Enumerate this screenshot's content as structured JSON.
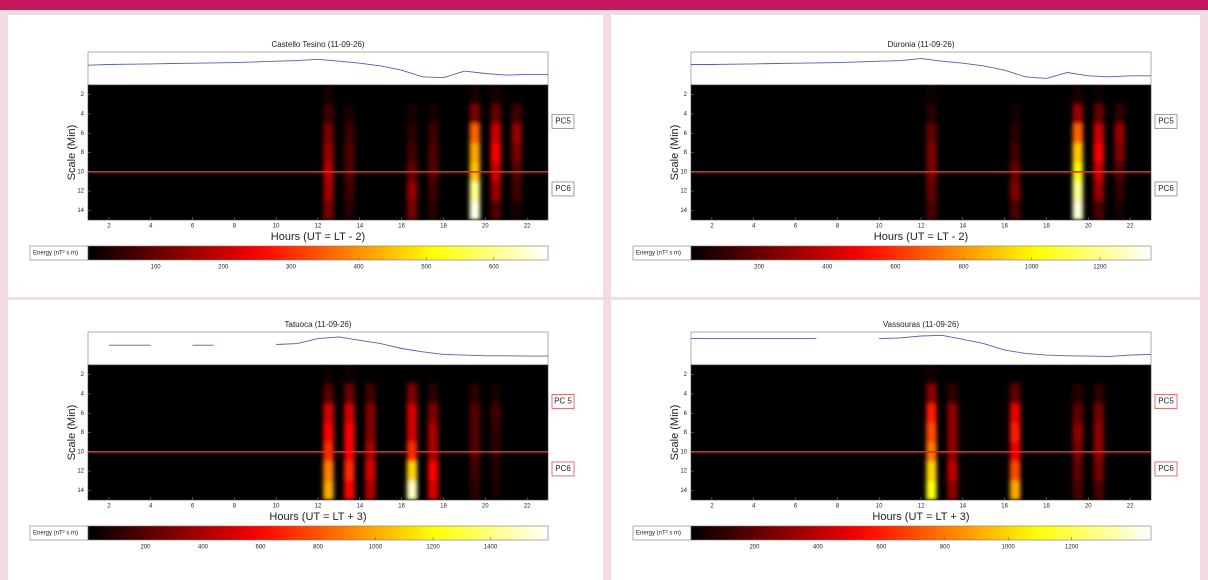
{
  "chart_data": [
    {
      "type": "heatmap",
      "title": "Castello Tesino (11-09-26)",
      "x_label": "Hours (UT = LT - 2)",
      "y_label": "Scale (Min)",
      "x": [
        1.5,
        2.5,
        3.5,
        4.5,
        5.5,
        6.5,
        7.5,
        8.5,
        9.5,
        10.5,
        11.5,
        12.5,
        13.5,
        14.5,
        15.5,
        16.5,
        17.5,
        18.5,
        19.5,
        20.5,
        21.5,
        22.5
      ],
      "y": [
        2,
        4,
        6,
        8,
        10,
        12,
        14
      ],
      "z": [
        [
          0,
          0,
          0,
          0,
          0,
          0,
          0,
          0,
          0,
          0,
          0,
          20,
          0,
          0,
          0,
          0,
          0,
          0,
          20,
          20,
          0,
          0
        ],
        [
          0,
          0,
          0,
          0,
          0,
          0,
          0,
          0,
          0,
          0,
          0,
          60,
          30,
          0,
          0,
          20,
          20,
          0,
          120,
          100,
          60,
          0
        ],
        [
          0,
          0,
          0,
          0,
          0,
          0,
          0,
          0,
          0,
          0,
          0,
          120,
          60,
          0,
          0,
          40,
          60,
          0,
          350,
          200,
          150,
          0
        ],
        [
          0,
          0,
          0,
          0,
          0,
          0,
          0,
          0,
          0,
          0,
          0,
          150,
          80,
          0,
          0,
          60,
          80,
          0,
          420,
          250,
          120,
          0
        ],
        [
          0,
          0,
          0,
          0,
          0,
          0,
          0,
          0,
          0,
          0,
          0,
          180,
          80,
          0,
          0,
          100,
          80,
          0,
          450,
          200,
          80,
          0
        ],
        [
          0,
          0,
          0,
          0,
          0,
          0,
          0,
          0,
          0,
          0,
          0,
          160,
          60,
          0,
          0,
          150,
          60,
          0,
          600,
          150,
          60,
          0
        ],
        [
          0,
          0,
          0,
          0,
          0,
          0,
          0,
          0,
          0,
          0,
          0,
          120,
          40,
          0,
          0,
          120,
          40,
          0,
          660,
          80,
          30,
          0
        ]
      ],
      "xlim": [
        1,
        23
      ],
      "xticks": [
        2,
        4,
        6,
        8,
        10,
        12,
        14,
        16,
        18,
        20,
        22
      ],
      "ylim": [
        1,
        15
      ],
      "yticks": [
        2,
        4,
        6,
        8,
        10,
        12,
        14
      ],
      "trace_x": [
        1,
        2,
        3,
        4,
        5,
        6,
        7,
        8,
        9,
        10,
        11,
        12,
        13,
        14,
        15,
        16,
        17,
        18,
        19,
        20,
        21,
        22,
        23
      ],
      "trace": [
        60,
        62,
        63,
        64,
        65,
        66,
        67,
        68,
        70,
        72,
        74,
        78,
        72,
        66,
        58,
        45,
        25,
        22,
        42,
        35,
        30,
        32,
        32
      ],
      "trace_ylim": [
        0,
        100
      ],
      "boundary": 10,
      "band_labels": [
        "PC5",
        "PC6"
      ],
      "colorbar_label": "Energy (nT² s m)",
      "clim": [
        0,
        680
      ],
      "cticks": [
        100,
        200,
        300,
        400,
        500,
        600
      ]
    },
    {
      "type": "heatmap",
      "title": "Duronia (11-09-26)",
      "x_label": "Hours (UT = LT - 2)",
      "y_label": "Scale (Min)",
      "x": [
        1.5,
        2.5,
        3.5,
        4.5,
        5.5,
        6.5,
        7.5,
        8.5,
        9.5,
        10.5,
        11.5,
        12.5,
        13.5,
        14.5,
        15.5,
        16.5,
        17.5,
        18.5,
        19.5,
        20.5,
        21.5,
        22.5
      ],
      "y": [
        2,
        4,
        6,
        8,
        10,
        12,
        14
      ],
      "z": [
        [
          0,
          0,
          0,
          0,
          0,
          0,
          0,
          0,
          0,
          0,
          0,
          20,
          0,
          0,
          0,
          0,
          0,
          0,
          40,
          20,
          0,
          0
        ],
        [
          0,
          0,
          0,
          0,
          0,
          0,
          0,
          0,
          0,
          0,
          0,
          80,
          0,
          0,
          0,
          40,
          0,
          0,
          300,
          200,
          100,
          0
        ],
        [
          0,
          0,
          0,
          0,
          0,
          0,
          0,
          0,
          0,
          0,
          0,
          200,
          0,
          0,
          0,
          80,
          0,
          0,
          700,
          400,
          300,
          0
        ],
        [
          0,
          0,
          0,
          0,
          0,
          0,
          0,
          0,
          0,
          0,
          0,
          250,
          0,
          0,
          0,
          120,
          0,
          0,
          900,
          500,
          250,
          0
        ],
        [
          0,
          0,
          0,
          0,
          0,
          0,
          0,
          0,
          0,
          0,
          0,
          250,
          0,
          0,
          0,
          200,
          0,
          0,
          1000,
          400,
          150,
          0
        ],
        [
          0,
          0,
          0,
          0,
          0,
          0,
          0,
          0,
          0,
          0,
          0,
          200,
          0,
          0,
          0,
          250,
          0,
          0,
          1200,
          300,
          100,
          0
        ],
        [
          0,
          0,
          0,
          0,
          0,
          0,
          0,
          0,
          0,
          0,
          0,
          150,
          0,
          0,
          0,
          150,
          0,
          0,
          1300,
          150,
          50,
          0
        ]
      ],
      "xlim": [
        1,
        23
      ],
      "xticks": [
        2,
        4,
        6,
        8,
        10,
        12,
        14,
        16,
        18,
        20,
        22
      ],
      "ylim": [
        1,
        15
      ],
      "yticks": [
        2,
        4,
        6,
        8,
        10,
        12,
        14
      ],
      "trace_x": [
        1,
        2,
        3,
        4,
        5,
        6,
        7,
        8,
        9,
        10,
        11,
        12,
        13,
        14,
        15,
        16,
        17,
        18,
        19,
        20,
        21,
        22,
        23
      ],
      "trace": [
        62,
        62,
        63,
        64,
        65,
        66,
        67,
        68,
        70,
        72,
        74,
        80,
        72,
        66,
        58,
        45,
        25,
        20,
        38,
        28,
        25,
        28,
        28
      ],
      "trace_ylim": [
        0,
        100
      ],
      "boundary": 10,
      "band_labels": [
        "PC5",
        "PC6"
      ],
      "colorbar_label": "Energy (nT² s m)",
      "clim": [
        0,
        1350
      ],
      "cticks": [
        200,
        400,
        600,
        800,
        1000,
        1200
      ]
    },
    {
      "type": "heatmap",
      "title": "Tatuoca (11-09-26)",
      "x_label": "Hours (UT = LT + 3)",
      "y_label": "Scale (Min)",
      "x": [
        1.5,
        2.5,
        3.5,
        4.5,
        5.5,
        6.5,
        7.5,
        8.5,
        9.5,
        10.5,
        11.5,
        12.5,
        13.5,
        14.5,
        15.5,
        16.5,
        17.5,
        18.5,
        19.5,
        20.5,
        21.5,
        22.5
      ],
      "y": [
        2,
        4,
        6,
        8,
        10,
        12,
        14
      ],
      "z": [
        [
          0,
          0,
          0,
          0,
          0,
          0,
          0,
          0,
          0,
          0,
          0,
          20,
          20,
          0,
          0,
          0,
          0,
          0,
          0,
          0,
          0,
          0
        ],
        [
          0,
          0,
          0,
          0,
          0,
          0,
          0,
          0,
          0,
          0,
          0,
          200,
          250,
          150,
          0,
          300,
          100,
          0,
          100,
          50,
          0,
          0
        ],
        [
          0,
          0,
          0,
          0,
          0,
          0,
          0,
          0,
          0,
          0,
          0,
          500,
          500,
          300,
          0,
          500,
          300,
          0,
          200,
          150,
          0,
          0
        ],
        [
          0,
          0,
          0,
          0,
          0,
          0,
          0,
          0,
          0,
          0,
          0,
          600,
          600,
          300,
          0,
          500,
          400,
          0,
          200,
          100,
          0,
          0
        ],
        [
          0,
          0,
          0,
          0,
          0,
          0,
          0,
          0,
          0,
          0,
          0,
          700,
          600,
          400,
          0,
          700,
          400,
          0,
          200,
          100,
          0,
          0
        ],
        [
          0,
          0,
          0,
          0,
          0,
          0,
          0,
          0,
          0,
          0,
          0,
          900,
          700,
          500,
          0,
          1100,
          600,
          0,
          150,
          80,
          0,
          0
        ],
        [
          0,
          0,
          0,
          0,
          0,
          0,
          0,
          0,
          0,
          0,
          0,
          1000,
          600,
          400,
          0,
          1500,
          500,
          0,
          100,
          50,
          0,
          0
        ]
      ],
      "xlim": [
        1,
        23
      ],
      "xticks": [
        2,
        4,
        6,
        8,
        10,
        12,
        14,
        16,
        18,
        20,
        22
      ],
      "ylim": [
        1,
        15
      ],
      "yticks": [
        2,
        4,
        6,
        8,
        10,
        12,
        14
      ],
      "trace_x": [
        1,
        2,
        3,
        4,
        5,
        6,
        7,
        8,
        9,
        10,
        11,
        12,
        13,
        14,
        15,
        16,
        17,
        18,
        19,
        20,
        21,
        22,
        23
      ],
      "trace": [
        null,
        60,
        60,
        60,
        null,
        60,
        60,
        null,
        null,
        62,
        65,
        80,
        85,
        75,
        65,
        50,
        40,
        32,
        30,
        28,
        28,
        27,
        27
      ],
      "trace_ylim": [
        0,
        100
      ],
      "boundary": 10,
      "band_labels": [
        "PC 5",
        "PC6"
      ],
      "colorbar_label": "Energy (nT² s m)",
      "clim": [
        0,
        1600
      ],
      "cticks": [
        200,
        400,
        600,
        800,
        1000,
        1200,
        1400
      ]
    },
    {
      "type": "heatmap",
      "title": "Vassouras (11-09-26)",
      "x_label": "Hours (UT = LT + 3)",
      "y_label": "Scale (Min)",
      "x": [
        1.5,
        2.5,
        3.5,
        4.5,
        5.5,
        6.5,
        7.5,
        8.5,
        9.5,
        10.5,
        11.5,
        12.5,
        13.5,
        14.5,
        15.5,
        16.5,
        17.5,
        18.5,
        19.5,
        20.5,
        21.5,
        22.5
      ],
      "y": [
        2,
        4,
        6,
        8,
        10,
        12,
        14
      ],
      "z": [
        [
          0,
          0,
          0,
          0,
          0,
          0,
          0,
          0,
          0,
          0,
          0,
          20,
          0,
          0,
          0,
          0,
          0,
          0,
          0,
          0,
          0,
          0
        ],
        [
          0,
          0,
          0,
          0,
          0,
          0,
          0,
          0,
          0,
          0,
          0,
          300,
          100,
          0,
          0,
          200,
          0,
          0,
          80,
          100,
          0,
          0
        ],
        [
          0,
          0,
          0,
          0,
          0,
          0,
          0,
          0,
          0,
          0,
          0,
          600,
          300,
          0,
          0,
          500,
          0,
          0,
          200,
          250,
          0,
          0
        ],
        [
          0,
          0,
          0,
          0,
          0,
          0,
          0,
          0,
          0,
          0,
          0,
          700,
          300,
          0,
          0,
          600,
          0,
          0,
          300,
          300,
          0,
          0
        ],
        [
          0,
          0,
          0,
          0,
          0,
          0,
          0,
          0,
          0,
          0,
          0,
          800,
          300,
          0,
          0,
          500,
          0,
          0,
          250,
          300,
          0,
          0
        ],
        [
          0,
          0,
          0,
          0,
          0,
          0,
          0,
          0,
          0,
          0,
          0,
          1000,
          400,
          0,
          0,
          700,
          0,
          0,
          200,
          250,
          0,
          0
        ],
        [
          0,
          0,
          0,
          0,
          0,
          0,
          0,
          0,
          0,
          0,
          0,
          1100,
          300,
          0,
          0,
          900,
          0,
          0,
          150,
          150,
          0,
          0
        ]
      ],
      "xlim": [
        1,
        23
      ],
      "xticks": [
        2,
        4,
        6,
        8,
        10,
        12,
        14,
        16,
        18,
        20,
        22
      ],
      "ylim": [
        1,
        15
      ],
      "yticks": [
        2,
        4,
        6,
        8,
        10,
        12,
        14
      ],
      "trace_x": [
        1,
        2,
        3,
        4,
        5,
        6,
        7,
        8,
        9,
        10,
        11,
        12,
        13,
        14,
        15,
        16,
        17,
        18,
        19,
        20,
        21,
        22,
        23
      ],
      "trace": [
        80,
        80,
        80,
        80,
        80,
        80,
        80,
        null,
        null,
        80,
        82,
        88,
        90,
        78,
        65,
        45,
        35,
        30,
        28,
        27,
        26,
        30,
        32
      ],
      "trace_ylim": [
        0,
        100
      ],
      "boundary": 10,
      "band_labels": [
        "PC5",
        "PC6"
      ],
      "colorbar_label": "Energy (nT² s m)",
      "clim": [
        0,
        1450
      ],
      "cticks": [
        200,
        400,
        600,
        800,
        1000,
        1200
      ]
    }
  ]
}
